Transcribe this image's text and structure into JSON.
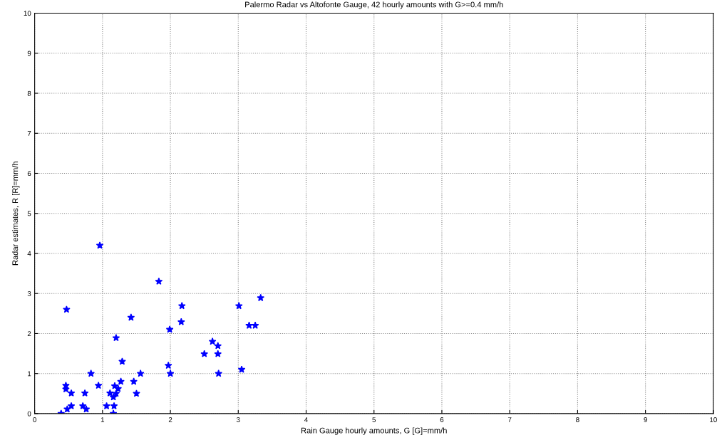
{
  "chart_data": {
    "type": "scatter",
    "title": "Palermo Radar vs Altofonte Gauge, 42 hourly amounts with G>=0.4 mm/h",
    "xlabel": "Rain Gauge hourly amounts, G [G]=mm/h",
    "ylabel": "Radar estimates, R [R]=mm/h",
    "series": [
      {
        "color": "#0000ff",
        "x": [
          0.39,
          0.48,
          0.54,
          0.46,
          0.46,
          0.54,
          0.47,
          0.71,
          0.76,
          0.74,
          0.83,
          0.94,
          0.96,
          1.06,
          1.11,
          1.16,
          1.16,
          1.17,
          1.18,
          1.2,
          1.2,
          1.23,
          1.27,
          1.29,
          1.42,
          1.46,
          1.5,
          1.56,
          1.83,
          1.97,
          1.99,
          2.0,
          2.16,
          2.17,
          2.5,
          2.62,
          2.7,
          2.7,
          2.71,
          3.01,
          3.05,
          3.16,
          3.25,
          3.33
        ],
        "values": [
          0,
          0.11,
          0.19,
          0.61,
          0.7,
          0.51,
          2.6,
          0.19,
          0.11,
          0.51,
          1.0,
          0.7,
          4.2,
          0.19,
          0.51,
          0,
          0.41,
          0.19,
          0.69,
          0.5,
          1.89,
          0.62,
          0.8,
          1.3,
          2.4,
          0.8,
          0.5,
          1.0,
          3.3,
          1.2,
          2.1,
          1.0,
          2.29,
          2.69,
          1.49,
          1.8,
          1.69,
          1.49,
          1.0,
          2.69,
          1.1,
          2.2,
          2.2,
          2.89
        ]
      }
    ],
    "xlim": [
      0,
      10
    ],
    "ylim": [
      0,
      10
    ],
    "xticks": [
      0,
      1,
      2,
      3,
      4,
      5,
      6,
      7,
      8,
      9,
      10
    ],
    "yticks": [
      0,
      1,
      2,
      3,
      4,
      5,
      6,
      7,
      8,
      9,
      10
    ],
    "grid": true,
    "marker": "star",
    "line_style": "none"
  }
}
